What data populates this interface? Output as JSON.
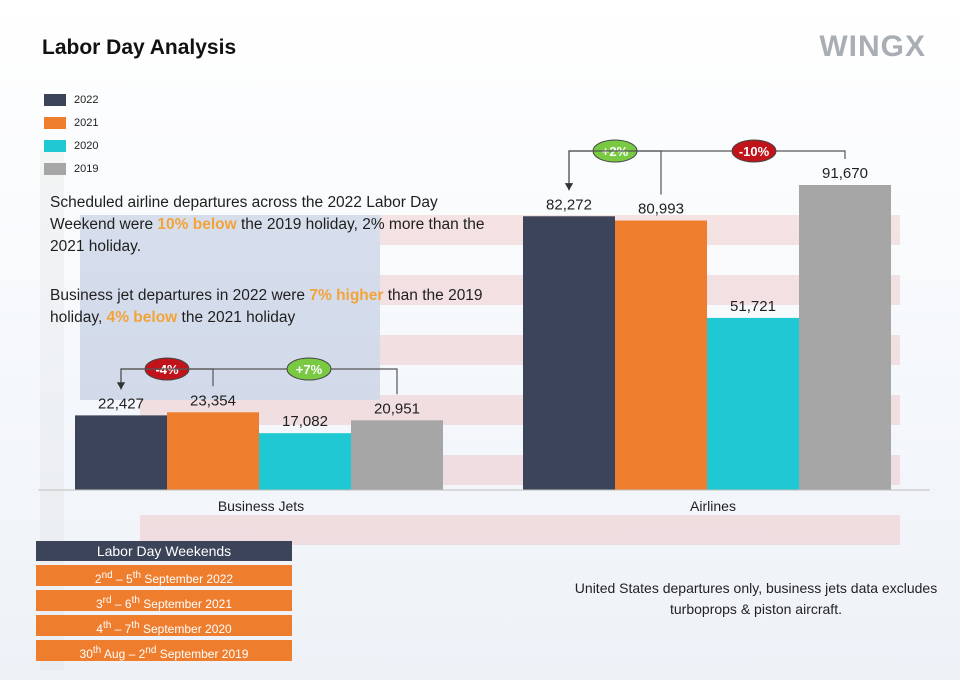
{
  "title": "Labor Day Analysis",
  "brand": "WINGX",
  "legend": [
    {
      "label": "2022",
      "color": "#3b4458"
    },
    {
      "label": "2021",
      "color": "#ef7d2e"
    },
    {
      "label": "2020",
      "color": "#1fc8d2"
    },
    {
      "label": "2019",
      "color": "#a6a6a6"
    }
  ],
  "text": {
    "airline_p1": "Scheduled airline departures across the 2022 Labor Day Weekend were ",
    "airline_hl": "10% below",
    "airline_p2": " the 2019 holiday, 2% more than the 2021 holiday.",
    "bj_p1": "Business jet departures in 2022 were ",
    "bj_hl1": "7% higher",
    "bj_p2": " than the 2019 holiday, ",
    "bj_hl2": "4% below",
    "bj_p3": " the 2021 holiday"
  },
  "weekends": {
    "header": "Labor Day Weekends",
    "rows": [
      {
        "d1": "2",
        "s1": "nd",
        "mid": " – 5",
        "s2": "th",
        "rest": " September  2022"
      },
      {
        "d1": "3",
        "s1": "rd",
        "mid": " – 6",
        "s2": "th",
        "rest": " September  2021"
      },
      {
        "d1": "4",
        "s1": "th",
        "mid": " – 7",
        "s2": "th",
        "rest": " September  2020"
      },
      {
        "d1": "30",
        "s1": "th",
        "mid": " Aug – 2",
        "s2": "nd",
        "rest": " September 2019"
      }
    ]
  },
  "note": "United States departures only, business jets data excludes turboprops & piston aircraft.",
  "chart_data": {
    "type": "bar",
    "categories": [
      "Business Jets",
      "Airlines"
    ],
    "series": [
      {
        "name": "2022",
        "values": [
          22427,
          82272
        ],
        "labels": [
          "22,427",
          "82,272"
        ],
        "color": "#3b4458"
      },
      {
        "name": "2021",
        "values": [
          23354,
          80993
        ],
        "labels": [
          "23,354",
          "80,993"
        ],
        "color": "#ef7d2e"
      },
      {
        "name": "2020",
        "values": [
          17082,
          51721
        ],
        "labels": [
          "17,082",
          "51,721"
        ],
        "color": "#1fc8d2"
      },
      {
        "name": "2019",
        "values": [
          20951,
          91670
        ],
        "labels": [
          "20,951",
          "91,670"
        ],
        "color": "#a6a6a6"
      }
    ],
    "annotations": [
      {
        "category": "Business Jets",
        "text": "-4%",
        "from": "2021",
        "to": "2022",
        "color": "#c0141a"
      },
      {
        "category": "Business Jets",
        "text": "+7%",
        "from": "2019",
        "to": "2022",
        "color": "#7ac943"
      },
      {
        "category": "Airlines",
        "text": "+2%",
        "from": "2021",
        "to": "2022",
        "color": "#7ac943"
      },
      {
        "category": "Airlines",
        "text": "-10%",
        "from": "2019",
        "to": "2022",
        "color": "#c0141a"
      }
    ]
  }
}
